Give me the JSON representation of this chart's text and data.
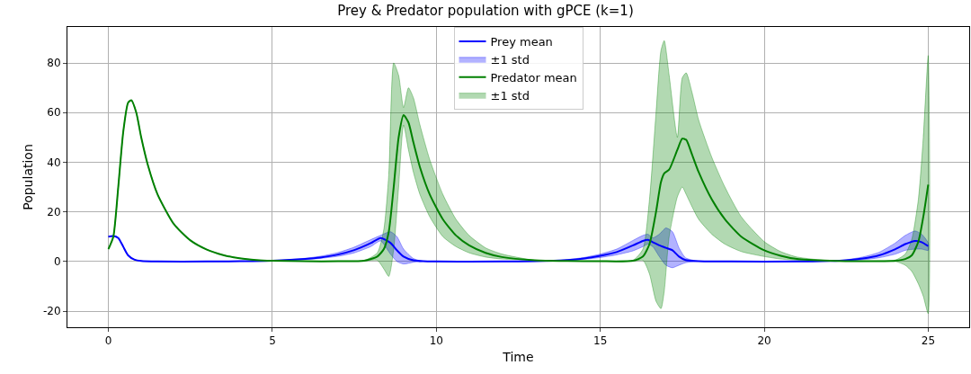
{
  "chart_data": {
    "type": "line",
    "title": "Prey & Predator population with gPCE (k=1)",
    "xlabel": "Time",
    "ylabel": "Population",
    "annotations": [
      "±1 std",
      "±1 std"
    ],
    "xlim": [
      -1.25,
      26.25
    ],
    "xticks": [
      0,
      5,
      10,
      15,
      20,
      25
    ],
    "ylim": [
      -26.5,
      94.5
    ],
    "yticks": [
      -20,
      0,
      20,
      40,
      60,
      80
    ],
    "grid": true,
    "legend": "top",
    "line_style": "solid",
    "marker": "none",
    "series": [
      {
        "name": "Prey mean",
        "color": "#0000ff",
        "x": [
          0,
          0.15,
          0.3,
          0.45,
          0.6,
          0.8,
          1.0,
          1.5,
          3,
          4,
          5,
          6,
          6.5,
          7,
          7.5,
          8,
          8.3,
          8.6,
          8.8,
          9.0,
          9.3,
          9.6,
          10,
          12,
          13,
          14,
          14.5,
          15,
          15.5,
          16,
          16.3,
          16.45,
          16.6,
          16.8,
          17.0,
          17.2,
          17.4,
          17.6,
          18,
          19,
          21,
          22,
          22.5,
          23,
          23.5,
          24,
          24.3,
          24.6,
          24.8,
          25
        ],
        "values": [
          10,
          10.3,
          9.5,
          6,
          2.5,
          0.7,
          0.2,
          0,
          0,
          0.1,
          0.3,
          1.0,
          1.7,
          2.8,
          4.6,
          7.4,
          9.5,
          7.5,
          4.5,
          2,
          0.5,
          0.1,
          0,
          0,
          0.1,
          0.6,
          1.2,
          2.3,
          3.8,
          6.5,
          8.3,
          8.7,
          7.8,
          6.5,
          5.5,
          4.5,
          2.0,
          0.6,
          0.1,
          0,
          0,
          0.2,
          0.5,
          1.2,
          2.5,
          5,
          7,
          8.3,
          7.8,
          6.2
        ],
        "lower": [
          10,
          10.3,
          9.5,
          6,
          2.5,
          0.7,
          0.2,
          0,
          0,
          0.1,
          0.3,
          0.8,
          1.3,
          2.1,
          3.5,
          6,
          8.3,
          3,
          0,
          -1,
          -0.3,
          0.1,
          0,
          0,
          0.1,
          0.5,
          0.9,
          1.6,
          2.7,
          4.3,
          6,
          7,
          6,
          2,
          -1.5,
          -2.5,
          -1.5,
          -0.5,
          0.1,
          0,
          0,
          0.2,
          0.3,
          0.7,
          1.5,
          3,
          4.5,
          5,
          5,
          4.5
        ],
        "upper": [
          10,
          10.3,
          9.5,
          6,
          2.5,
          0.7,
          0.2,
          0,
          0,
          0.1,
          0.3,
          1.3,
          2.2,
          3.6,
          5.8,
          8.8,
          10.5,
          12,
          10,
          5,
          1.2,
          0.1,
          0,
          0,
          0.1,
          0.8,
          1.6,
          3.0,
          5,
          8.5,
          10.5,
          11,
          9.5,
          11,
          13.5,
          12,
          5.5,
          1.5,
          0.1,
          0,
          0,
          0.2,
          0.7,
          1.8,
          3.7,
          7.5,
          10.5,
          12.3,
          11,
          7.5
        ]
      },
      {
        "name": "Predator mean",
        "color": "#008000",
        "x": [
          0,
          0.15,
          0.3,
          0.45,
          0.6,
          0.7,
          0.85,
          1.0,
          1.2,
          1.5,
          2.0,
          2.5,
          3.0,
          3.5,
          4.0,
          4.5,
          5.0,
          6,
          7,
          7.8,
          8.2,
          8.4,
          8.55,
          8.7,
          8.85,
          9.0,
          9.15,
          9.3,
          9.5,
          9.8,
          10.2,
          10.6,
          11.0,
          11.5,
          12,
          13,
          14,
          15,
          16,
          16.3,
          16.5,
          16.7,
          16.85,
          16.95,
          17.1,
          17.35,
          17.5,
          17.62,
          17.8,
          18.0,
          18.4,
          18.8,
          19.3,
          20,
          20.5,
          21,
          22,
          23,
          24,
          24.3,
          24.5,
          24.7,
          24.85,
          25
        ],
        "values": [
          5,
          10,
          30,
          52,
          64,
          65,
          60,
          50,
          39,
          27,
          15,
          8.5,
          4.8,
          2.6,
          1.3,
          0.6,
          0.3,
          0.1,
          0.1,
          0.3,
          2,
          5,
          12,
          30,
          50,
          59,
          56,
          48,
          38,
          27,
          17,
          10.5,
          6.5,
          3.5,
          1.8,
          0.5,
          0.2,
          0.1,
          0.3,
          2,
          7,
          20,
          32,
          35.5,
          37,
          45,
          49.5,
          49,
          43,
          36,
          25,
          17,
          10,
          4.5,
          2.3,
          1,
          0.3,
          0.1,
          0.3,
          1,
          2.5,
          8,
          18,
          31
        ],
        "lower": [
          5,
          10,
          30,
          52,
          64,
          65,
          60,
          50,
          39,
          27,
          15,
          8.5,
          4.8,
          2.6,
          1.3,
          0.6,
          0.3,
          0.1,
          0.1,
          0.2,
          0.5,
          -3,
          -6,
          5,
          30,
          55,
          45,
          36,
          27,
          18,
          10,
          6,
          3.5,
          1.8,
          1,
          0.5,
          0.2,
          0.1,
          0.1,
          0.5,
          -5,
          -16,
          -19,
          -12,
          10,
          26,
          30,
          27,
          22,
          17,
          11,
          7,
          4,
          2,
          1,
          0.5,
          0.3,
          0.1,
          0,
          -1.5,
          -4,
          -9,
          -14,
          -21
        ],
        "upper": [
          5,
          10,
          30,
          52,
          64,
          65,
          60,
          50,
          39,
          27,
          15,
          8.5,
          4.8,
          2.6,
          1.3,
          0.6,
          0.3,
          0.1,
          0.1,
          0.4,
          3.5,
          13,
          35,
          80,
          75,
          62,
          70,
          66,
          55,
          41,
          27,
          17,
          10.5,
          5.5,
          3,
          0.5,
          0.2,
          0.1,
          0.5,
          5,
          25,
          60,
          85,
          89,
          75,
          50,
          74,
          76,
          68,
          57,
          42,
          30,
          18,
          8,
          4,
          1.8,
          0.3,
          0.1,
          0.6,
          3,
          9,
          25,
          50,
          83
        ]
      }
    ]
  }
}
